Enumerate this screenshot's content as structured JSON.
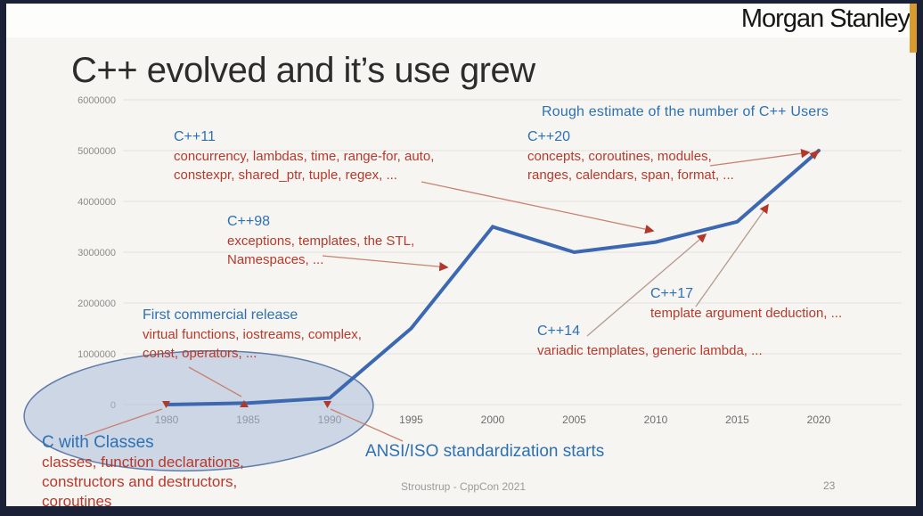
{
  "window": {
    "brand_logo": "Morgan Stanley",
    "page_number": "23"
  },
  "slide": {
    "title": "C++ evolved and it’s use grew",
    "chart_note": "Rough estimate of the number of C++ Users",
    "footer": "Stroustrup - CppCon 2021"
  },
  "annotations": [
    {
      "id": "cpp11",
      "heading": "C++11",
      "body": [
        "concurrency, lambdas, time, range-for, auto,",
        "constexpr, shared_ptr, tuple, regex, ..."
      ]
    },
    {
      "id": "cpp20",
      "heading": "C++20",
      "body": [
        "concepts, coroutines, modules,",
        "ranges, calendars, span, format, ..."
      ]
    },
    {
      "id": "cpp98",
      "heading": "C++98",
      "body": [
        "exceptions, templates, the STL,",
        "Namespaces, ..."
      ]
    },
    {
      "id": "first-commercial-release",
      "heading": "First commercial release",
      "body": [
        "virtual functions, iostreams, complex,",
        "const, operators, ..."
      ]
    },
    {
      "id": "cpp14",
      "heading": "C++14",
      "body": [
        "variadic templates, generic lambda, ..."
      ]
    },
    {
      "id": "cpp17",
      "heading": "C++17",
      "body": [
        "template argument deduction, ..."
      ]
    },
    {
      "id": "c-with-classes",
      "heading": "C with Classes",
      "body": [
        "classes, function declarations,",
        "constructors and destructors,",
        "coroutines"
      ]
    },
    {
      "id": "ansi-iso",
      "heading": "ANSI/ISO standardization starts",
      "body": []
    }
  ],
  "chart_data": {
    "type": "line",
    "title": "Rough estimate of the number of C++ Users",
    "xlabel": "",
    "ylabel": "",
    "x": [
      1980,
      1985,
      1990,
      1995,
      2000,
      2005,
      2010,
      2015,
      2020
    ],
    "series": [
      {
        "name": "C++ users (rough estimate)",
        "values": [
          0,
          30000,
          130000,
          1500000,
          3500000,
          3000000,
          3200000,
          3600000,
          5000000
        ]
      }
    ],
    "ylim": [
      0,
      6000000
    ],
    "y_ticks": [
      0,
      1000000,
      2000000,
      3000000,
      4000000,
      5000000,
      6000000
    ],
    "x_ticks": [
      1980,
      1985,
      1990,
      1995,
      2000,
      2005,
      2010,
      2015,
      2020
    ],
    "grid": true,
    "legend": false
  },
  "colors": {
    "line": "#3c67b1",
    "heading_blue": "#2d71b3",
    "feature_red": "#b8392b",
    "arrow_red": "#c9806f",
    "arrow_tan": "#b59a8e",
    "arrowhead": "#b0392c",
    "ellipse_fill": "rgba(170,188,216,0.55)",
    "ellipse_stroke": "#5f7cab",
    "gridline": "#e2e1df",
    "frame": "#1a2036",
    "edge_accent": "#d99b2e"
  }
}
